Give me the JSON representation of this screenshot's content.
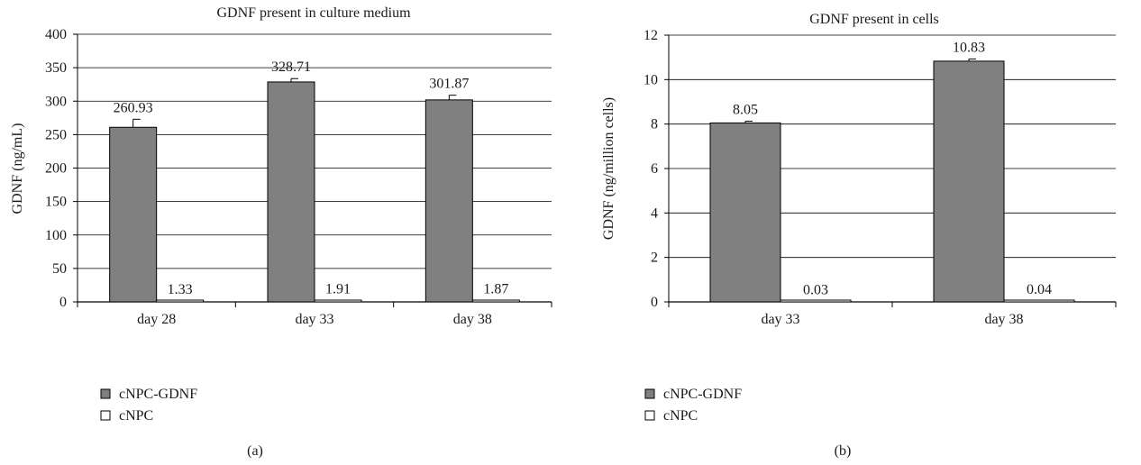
{
  "chart_data": [
    {
      "type": "bar",
      "title": "GDNF present in culture medium",
      "ylabel": "GDNF (ng/mL)",
      "xlabel": "",
      "categories": [
        "day 28",
        "day 33",
        "day 38"
      ],
      "ylim": [
        0,
        400
      ],
      "yticks": [
        0,
        50,
        100,
        150,
        200,
        250,
        300,
        350,
        400
      ],
      "yticks_labels": [
        "0",
        "50",
        "100",
        "150",
        "200",
        "250",
        "300",
        "350",
        "400"
      ],
      "grid": true,
      "series": [
        {
          "name": "cNPC-GDNF",
          "values": [
            260.93,
            328.71,
            301.87
          ],
          "labels": [
            "260.93",
            "328.71",
            "301.87"
          ],
          "errors": [
            12,
            5,
            7
          ],
          "color": "#808080"
        },
        {
          "name": "cNPC",
          "values": [
            1.33,
            1.91,
            1.87
          ],
          "labels": [
            "1.33",
            "1.91",
            "1.87"
          ],
          "errors": [
            0,
            0,
            0
          ],
          "color": "#ffffff"
        }
      ],
      "legend": "bottom-left",
      "panel_label": "(a)"
    },
    {
      "type": "bar",
      "title": "GDNF present in cells",
      "ylabel": "GDNF (ng/million cells)",
      "xlabel": "",
      "categories": [
        "day 33",
        "day 38"
      ],
      "ylim": [
        0,
        12
      ],
      "yticks": [
        0,
        2,
        4,
        6,
        8,
        10,
        12
      ],
      "yticks_labels": [
        "0",
        "2",
        "4",
        "6",
        "8",
        "10",
        "12"
      ],
      "grid": true,
      "series": [
        {
          "name": "cNPC-GDNF",
          "values": [
            8.05,
            10.83
          ],
          "labels": [
            "8.05",
            "10.83"
          ],
          "errors": [
            0.08,
            0.1
          ],
          "color": "#808080"
        },
        {
          "name": "cNPC",
          "values": [
            0.03,
            0.04
          ],
          "labels": [
            "0.03",
            "0.04"
          ],
          "errors": [
            0,
            0
          ],
          "color": "#ffffff"
        }
      ],
      "legend": "bottom-left",
      "panel_label": "(b)"
    }
  ]
}
